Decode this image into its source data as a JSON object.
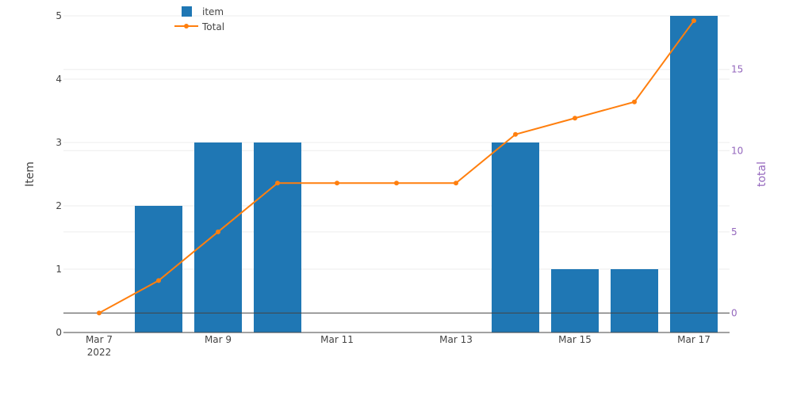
{
  "chart_data": {
    "type": "bar",
    "x": [
      "2022-03-07",
      "2022-03-08",
      "2022-03-09",
      "2022-03-10",
      "2022-03-11",
      "2022-03-12",
      "2022-03-13",
      "2022-03-14",
      "2022-03-15",
      "2022-03-16",
      "2022-03-17"
    ],
    "x_tick_labels": [
      {
        "x": "2022-03-07",
        "label": "Mar 7",
        "sublabel": "2022"
      },
      {
        "x": "2022-03-09",
        "label": "Mar 9"
      },
      {
        "x": "2022-03-11",
        "label": "Mar 11"
      },
      {
        "x": "2022-03-13",
        "label": "Mar 13"
      },
      {
        "x": "2022-03-15",
        "label": "Mar 15"
      },
      {
        "x": "2022-03-17",
        "label": "Mar 17"
      }
    ],
    "series": [
      {
        "name": "item",
        "type": "bar",
        "axis": "left",
        "color": "#1f77b4",
        "values": [
          0,
          2,
          3,
          3,
          0,
          0,
          0,
          3,
          1,
          1,
          5
        ]
      },
      {
        "name": "Total",
        "type": "line",
        "axis": "right",
        "color": "#ff7f0e",
        "values": [
          0,
          2,
          5,
          8,
          8,
          8,
          8,
          11,
          12,
          13,
          18
        ]
      }
    ],
    "ylabel": "Item",
    "ylabel2": "total",
    "ylim": [
      0,
      5
    ],
    "y2lim": [
      -1.2,
      18.3
    ],
    "yticks": [
      0,
      1,
      2,
      3,
      4,
      5
    ],
    "y2ticks": [
      0,
      5,
      10,
      15
    ],
    "y2_color": "#9467bd",
    "grid": true,
    "legend_position": "top-left"
  }
}
